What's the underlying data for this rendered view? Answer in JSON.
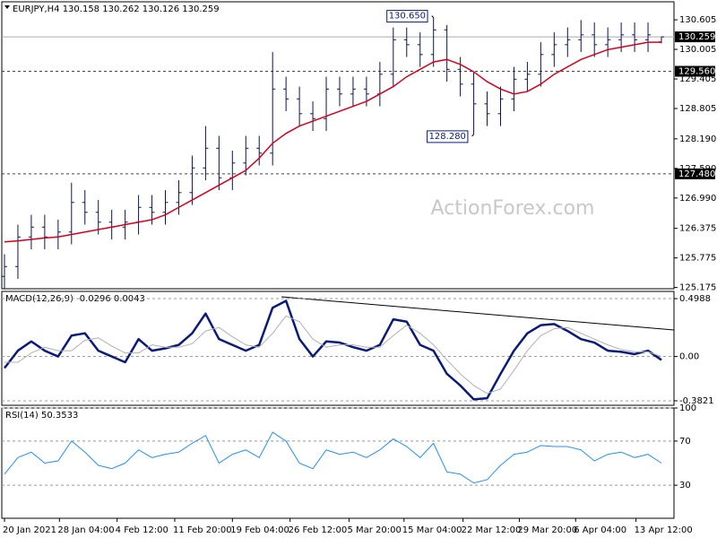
{
  "chart_data": [
    {
      "type": "ohlc",
      "title": "EURJPY,H4 130.158 130.262 130.126 130.259",
      "open": [
        125.4,
        125.6,
        126.2,
        126.4,
        126.2,
        126.3,
        126.9,
        126.7,
        126.5,
        126.4,
        126.5,
        126.8,
        126.7,
        126.9,
        127.1,
        127.6,
        128.0,
        127.4,
        127.7,
        128.0,
        127.9,
        129.2,
        129.0,
        128.7,
        128.6,
        129.2,
        129.1,
        129.2,
        129.1,
        129.5,
        130.2,
        130.1,
        129.9,
        130.4,
        129.6,
        129.3,
        128.9,
        128.7,
        129.0,
        129.4,
        129.5,
        129.9,
        130.1,
        130.2,
        130.3,
        130.1,
        130.2,
        130.3,
        130.2,
        130.158
      ],
      "high": [
        125.85,
        126.45,
        126.65,
        126.65,
        126.55,
        127.3,
        127.15,
        126.95,
        126.75,
        126.75,
        127.05,
        127.05,
        127.15,
        127.35,
        127.85,
        128.45,
        128.25,
        127.95,
        128.25,
        128.25,
        129.95,
        129.45,
        129.25,
        128.95,
        129.45,
        129.45,
        129.45,
        129.45,
        129.75,
        130.45,
        130.45,
        130.35,
        130.65,
        130.5,
        129.85,
        129.55,
        129.15,
        129.25,
        129.65,
        129.75,
        130.15,
        130.35,
        130.45,
        130.6,
        130.55,
        130.45,
        130.55,
        130.55,
        130.55,
        130.262
      ],
      "low": [
        125.15,
        125.35,
        125.95,
        125.95,
        125.95,
        126.05,
        126.45,
        126.25,
        126.15,
        126.15,
        126.25,
        126.45,
        126.45,
        126.65,
        126.85,
        127.35,
        127.15,
        127.15,
        127.45,
        127.65,
        127.65,
        128.75,
        128.45,
        128.35,
        128.35,
        128.85,
        128.85,
        128.85,
        128.85,
        129.25,
        129.85,
        129.65,
        129.65,
        129.35,
        129.05,
        128.28,
        128.45,
        128.45,
        128.75,
        129.15,
        129.25,
        129.65,
        129.85,
        129.95,
        129.85,
        129.85,
        129.95,
        129.95,
        129.95,
        130.126
      ],
      "close": [
        125.6,
        126.2,
        126.4,
        126.2,
        126.3,
        126.9,
        126.7,
        126.5,
        126.4,
        126.5,
        126.8,
        126.7,
        126.9,
        127.1,
        127.6,
        128.0,
        127.4,
        127.7,
        128.0,
        127.9,
        129.2,
        129.0,
        128.7,
        128.6,
        129.2,
        129.1,
        129.2,
        129.1,
        129.5,
        130.2,
        130.1,
        129.9,
        130.4,
        129.6,
        129.3,
        128.9,
        128.7,
        129.0,
        129.4,
        129.5,
        129.9,
        130.1,
        130.2,
        130.3,
        130.1,
        130.2,
        130.3,
        130.2,
        130.3,
        130.259
      ],
      "color": "#0b1450",
      "ma_values": [
        126.1,
        126.12,
        126.15,
        126.18,
        126.2,
        126.25,
        126.3,
        126.35,
        126.4,
        126.45,
        126.5,
        126.55,
        126.65,
        126.8,
        126.95,
        127.1,
        127.25,
        127.4,
        127.55,
        127.8,
        128.1,
        128.3,
        128.45,
        128.55,
        128.65,
        128.75,
        128.85,
        128.95,
        129.1,
        129.25,
        129.45,
        129.6,
        129.75,
        129.8,
        129.7,
        129.55,
        129.35,
        129.2,
        129.1,
        129.15,
        129.3,
        129.5,
        129.65,
        129.8,
        129.9,
        130.0,
        130.05,
        130.1,
        130.15,
        130.15
      ],
      "ma_color": "#d6001c",
      "xlim": [
        0,
        49
      ],
      "ylim": [
        125.15,
        130.97
      ],
      "yticks": [
        130.605,
        130.005,
        129.405,
        128.805,
        {
          "value": 128.19,
          "label": "128.190"
        },
        {
          "value": 127.59,
          "label": "127.590"
        },
        {
          "value": 126.99,
          "label": "126.990"
        },
        126.375,
        125.775,
        125.175
      ],
      "grid": false,
      "levels": [
        {
          "value": 130.259,
          "style": "solid"
        },
        {
          "value": 129.56,
          "label": "129.560",
          "style": "dashed"
        },
        {
          "value": 127.48,
          "label": "127.480",
          "style": "dashed"
        }
      ],
      "annotations": [
        {
          "label": "130.650",
          "value": 130.65,
          "bar": 32
        },
        {
          "label": "128.280",
          "value": 128.28,
          "bar": 35
        }
      ],
      "watermark": "ActionForex.com"
    },
    {
      "type": "line",
      "title": "MACD(12,26,9) -0.0296 0.0043",
      "series": [
        {
          "color": "#0a1a7a",
          "width": 2.5,
          "values": [
            -0.1,
            0.05,
            0.13,
            0.05,
            0.0,
            0.18,
            0.2,
            0.05,
            0.0,
            -0.05,
            0.15,
            0.05,
            0.07,
            0.1,
            0.2,
            0.37,
            0.15,
            0.1,
            0.05,
            0.1,
            0.42,
            0.48,
            0.15,
            0.0,
            0.13,
            0.12,
            0.08,
            0.05,
            0.1,
            0.32,
            0.3,
            0.1,
            0.05,
            -0.15,
            -0.25,
            -0.37,
            -0.36,
            -0.15,
            0.05,
            0.2,
            0.27,
            0.28,
            0.22,
            0.15,
            0.12,
            0.05,
            0.04,
            0.02,
            0.05,
            -0.03
          ]
        },
        {
          "color": "#b0b0b0",
          "width": 1,
          "values": [
            -0.05,
            -0.05,
            0.03,
            0.08,
            0.05,
            0.05,
            0.14,
            0.16,
            0.09,
            0.03,
            0.03,
            0.1,
            0.08,
            0.08,
            0.11,
            0.22,
            0.25,
            0.17,
            0.1,
            0.08,
            0.2,
            0.35,
            0.3,
            0.15,
            0.08,
            0.1,
            0.1,
            0.08,
            0.08,
            0.18,
            0.27,
            0.2,
            0.1,
            -0.03,
            -0.15,
            -0.25,
            -0.32,
            -0.28,
            -0.12,
            0.05,
            0.18,
            0.24,
            0.25,
            0.2,
            0.15,
            0.1,
            0.06,
            0.04,
            0.04,
            0.0
          ]
        }
      ],
      "xlim": [
        0,
        49
      ],
      "ylim": [
        -0.421,
        0.561
      ],
      "yticks": [
        0.4988,
        {
          "value": 0,
          "label": "0.00"
        },
        -0.3821
      ],
      "grid": true
    },
    {
      "type": "line",
      "title": "RSI(14) 50.3533",
      "series": [
        {
          "color": "#1e90ff",
          "width": 1,
          "values": [
            40,
            55,
            60,
            50,
            52,
            70,
            60,
            48,
            45,
            50,
            62,
            55,
            58,
            60,
            68,
            75,
            50,
            58,
            62,
            55,
            78,
            70,
            50,
            45,
            62,
            58,
            60,
            55,
            62,
            72,
            65,
            55,
            68,
            42,
            40,
            32,
            35,
            48,
            58,
            60,
            66,
            65,
            65,
            62,
            52,
            58,
            60,
            55,
            58,
            50
          ]
        }
      ],
      "xlim": [
        0,
        49
      ],
      "ylim": [
        0,
        100
      ],
      "yticks": [
        100,
        70,
        30
      ],
      "grid": true,
      "xticks": [
        {
          "value": 0,
          "label": "20 Jan 2021"
        },
        {
          "value": 4.1,
          "label": "28 Jan 04:00"
        },
        {
          "value": 8.4,
          "label": "4 Feb 12:00"
        },
        {
          "value": 12.7,
          "label": "11 Feb 20:00"
        },
        {
          "value": 17,
          "label": "19 Feb 04:00"
        },
        {
          "value": 21.3,
          "label": "26 Feb 12:00"
        },
        {
          "value": 25.7,
          "label": "5 Mar 20:00"
        },
        {
          "value": 29.8,
          "label": "15 Mar 04:00"
        },
        {
          "value": 34.2,
          "label": "22 Mar 12:00"
        },
        {
          "value": 38.4,
          "label": "29 Mar 20:00"
        },
        {
          "value": 42.6,
          "label": "6 Apr 04:00"
        },
        {
          "value": 47.1,
          "label": "13 Apr 12:00"
        }
      ]
    }
  ]
}
